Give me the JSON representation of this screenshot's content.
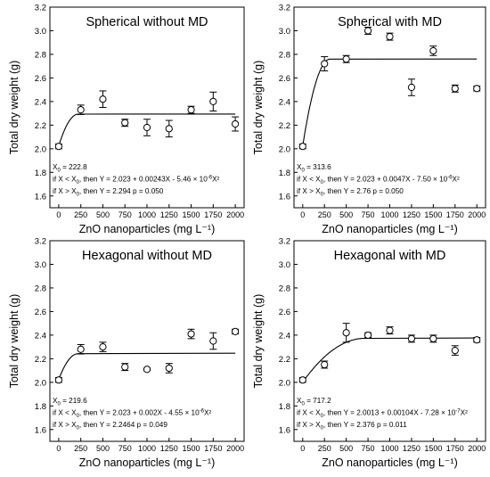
{
  "chart_data": [
    {
      "type": "scatter",
      "title": "Spherical without MD",
      "xlabel": "ZnO nanoparticles (mg L⁻¹)",
      "ylabel": "Total dry weight (g)",
      "xlim": [
        -100,
        2100
      ],
      "ylim": [
        1.5,
        3.2
      ],
      "xticks": [
        0,
        250,
        500,
        750,
        1000,
        1250,
        1500,
        1750,
        2000
      ],
      "yticks": [
        1.6,
        1.8,
        2.0,
        2.2,
        2.4,
        2.6,
        2.8,
        3.0,
        3.2
      ],
      "x": [
        0,
        250,
        500,
        750,
        1000,
        1250,
        1500,
        1750,
        2000
      ],
      "y": [
        2.02,
        2.33,
        2.42,
        2.22,
        2.18,
        2.17,
        2.33,
        2.4,
        2.21
      ],
      "err": [
        0.02,
        0.04,
        0.07,
        0.03,
        0.07,
        0.07,
        0.03,
        0.08,
        0.06
      ],
      "fit": {
        "a": 2.023,
        "b": 0.00243,
        "c": -5.46e-06,
        "x0": 222.8,
        "plateau": 2.294
      },
      "annotations": [
        {
          "pre": "X",
          "sub": "0",
          "post": " = 222.8",
          "sup": "",
          "tail": ""
        },
        {
          "pre": "if X < X",
          "sub": "0",
          "post": ", then Y = 2.023 + 0.00243X - 5.46 × 10",
          "sup": "-6",
          "tail": "X²"
        },
        {
          "pre": "if X > X",
          "sub": "0",
          "post": ", then Y = 2.294    p = 0.050",
          "sup": "",
          "tail": ""
        }
      ]
    },
    {
      "type": "scatter",
      "title": "Spherical with MD",
      "xlabel": "ZnO nanoparticles (mg L⁻¹)",
      "ylabel": "Total dry weight (g)",
      "xlim": [
        -100,
        2100
      ],
      "ylim": [
        1.5,
        3.2
      ],
      "xticks": [
        0,
        250,
        500,
        750,
        1000,
        1250,
        1500,
        1750,
        2000
      ],
      "yticks": [
        1.6,
        1.8,
        2.0,
        2.2,
        2.4,
        2.6,
        2.8,
        3.0,
        3.2
      ],
      "x": [
        0,
        250,
        500,
        750,
        1000,
        1250,
        1500,
        1750,
        2000
      ],
      "y": [
        2.02,
        2.72,
        2.76,
        3.0,
        2.95,
        2.52,
        2.83,
        2.51,
        2.51
      ],
      "err": [
        0.02,
        0.06,
        0.03,
        0.03,
        0.03,
        0.07,
        0.04,
        0.03,
        0.02
      ],
      "fit": {
        "a": 2.023,
        "b": 0.0047,
        "c": -7.5e-06,
        "x0": 313.6,
        "plateau": 2.76
      },
      "annotations": [
        {
          "pre": "X",
          "sub": "0",
          "post": " = 313.6",
          "sup": "",
          "tail": ""
        },
        {
          "pre": "if X < X",
          "sub": "0",
          "post": ", then Y = 2.023 + 0.0047X - 7.50 × 10",
          "sup": "-6",
          "tail": "X²"
        },
        {
          "pre": "if X > X",
          "sub": "0",
          "post": ", then Y = 2.76    p = 0.050",
          "sup": "",
          "tail": ""
        }
      ]
    },
    {
      "type": "scatter",
      "title": "Hexagonal without MD",
      "xlabel": "ZnO nanoparticles (mg L⁻¹)",
      "ylabel": "Total dry weight (g)",
      "xlim": [
        -100,
        2100
      ],
      "ylim": [
        1.5,
        3.2
      ],
      "xticks": [
        0,
        250,
        500,
        750,
        1000,
        1250,
        1500,
        1750,
        2000
      ],
      "yticks": [
        1.6,
        1.8,
        2.0,
        2.2,
        2.4,
        2.6,
        2.8,
        3.0,
        3.2
      ],
      "x": [
        0,
        250,
        500,
        750,
        1000,
        1250,
        1500,
        1750,
        2000
      ],
      "y": [
        2.02,
        2.28,
        2.3,
        2.13,
        2.11,
        2.12,
        2.41,
        2.35,
        2.43
      ],
      "err": [
        0.02,
        0.04,
        0.04,
        0.03,
        0.01,
        0.04,
        0.04,
        0.07,
        0.02
      ],
      "fit": {
        "a": 2.023,
        "b": 0.002,
        "c": -4.55e-06,
        "x0": 219.6,
        "plateau": 2.2464
      },
      "annotations": [
        {
          "pre": "X",
          "sub": "0",
          "post": " = 219.6",
          "sup": "",
          "tail": ""
        },
        {
          "pre": "if X < X",
          "sub": "0",
          "post": ", then Y = 2.023 + 0.002X - 4.55 × 10",
          "sup": "-6",
          "tail": "X²"
        },
        {
          "pre": "if X > X",
          "sub": "0",
          "post": ", then Y = 2.2464       p = 0.049",
          "sup": "",
          "tail": ""
        }
      ]
    },
    {
      "type": "scatter",
      "title": "Hexagonal with MD",
      "xlabel": "ZnO nanoparticles (mg L⁻¹)",
      "ylabel": "Total dry weight (g)",
      "xlim": [
        -100,
        2100
      ],
      "ylim": [
        1.5,
        3.2
      ],
      "xticks": [
        0,
        250,
        500,
        750,
        1000,
        1250,
        1500,
        1750,
        2000
      ],
      "yticks": [
        1.6,
        1.8,
        2.0,
        2.2,
        2.4,
        2.6,
        2.8,
        3.0,
        3.2
      ],
      "x": [
        0,
        250,
        500,
        750,
        1000,
        1250,
        1500,
        1750,
        2000
      ],
      "y": [
        2.02,
        2.15,
        2.42,
        2.4,
        2.44,
        2.37,
        2.37,
        2.27,
        2.36
      ],
      "err": [
        0.02,
        0.03,
        0.08,
        0.02,
        0.03,
        0.03,
        0.03,
        0.04,
        0.02
      ],
      "fit": {
        "a": 2.0013,
        "b": 0.00104,
        "c": -7.28e-07,
        "x0": 717.2,
        "plateau": 2.376
      },
      "annotations": [
        {
          "pre": "X",
          "sub": "0",
          "post": " = 717.2",
          "sup": "",
          "tail": ""
        },
        {
          "pre": "if X < X",
          "sub": "0",
          "post": ", then Y = 2.0013 + 0.00104X - 7.28 × 10",
          "sup": "-7",
          "tail": "X²"
        },
        {
          "pre": "if X > X",
          "sub": "0",
          "post": ", then Y = 2.376     p = 0.011",
          "sup": "",
          "tail": ""
        }
      ]
    }
  ]
}
